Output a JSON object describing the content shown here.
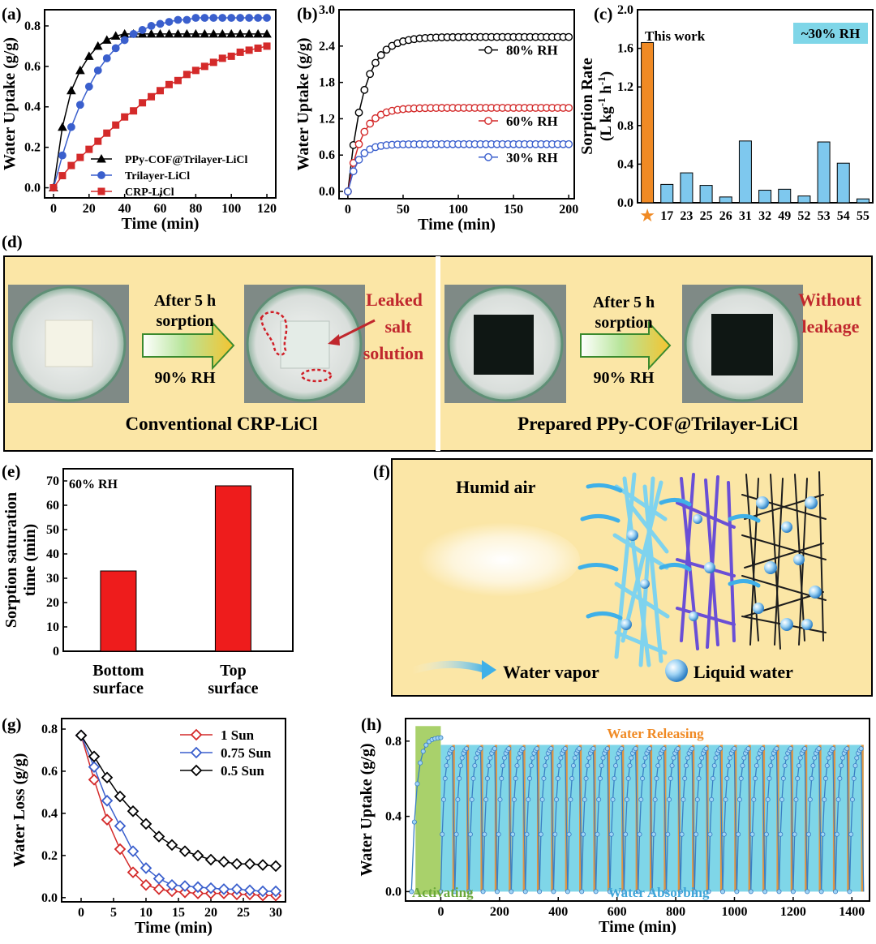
{
  "colors": {
    "black": "#000000",
    "blue": "#3a5fcd",
    "red": "#d42a2a",
    "orange": "#f08a24",
    "lightblue": "#8fd3f4",
    "barblue": "#7ec8ee",
    "panelbg": "#fbe6a6",
    "redbar": "#ee1c1c",
    "cyanbox": "#7fd6e8",
    "green": "#a9d16b",
    "darkred": "#c0272d"
  },
  "panels": {
    "a": "(a)",
    "b": "(b)",
    "c": "(c)",
    "d": "(d)",
    "e": "(e)",
    "f": "(f)",
    "g": "(g)",
    "h": "(h)"
  },
  "panel_d": {
    "left_arrow_top": "After 5 h",
    "left_arrow_mid": "sorption",
    "left_arrow_bot": "90% RH",
    "right_arrow_top": "After 5 h",
    "right_arrow_mid": "sorption",
    "right_arrow_bot": "90% RH",
    "leak_1": "Leaked",
    "leak_2": "salt",
    "leak_3": "solution",
    "noleak_1": "Without",
    "noleak_2": "leakage",
    "left_caption": "Conventional CRP-LiCl",
    "right_caption": "Prepared PPy-COF@Trilayer-LiCl"
  },
  "panel_f": {
    "humid_air": "Humid air",
    "water_vapor": "Water vapor",
    "liquid_water": "Liquid water"
  },
  "chart_data": [
    {
      "id": "a",
      "type": "line",
      "xlabel": "Time (min)",
      "ylabel": "Water Uptake (g/g)",
      "xlim": [
        -5,
        125
      ],
      "ylim": [
        -0.05,
        0.88
      ],
      "xticks": [
        0,
        20,
        40,
        60,
        80,
        100,
        120
      ],
      "xtick_labels": [
        "0",
        "20",
        "40",
        "60",
        "80",
        "100",
        "120"
      ],
      "yticks": [
        0.0,
        0.2,
        0.4,
        0.6,
        0.8
      ],
      "ytick_labels": [
        "0.0",
        "0.2",
        "0.4",
        "0.6",
        "0.8"
      ],
      "series": [
        {
          "name": "PPy-COF@Trilayer-LiCl",
          "marker": "triangle",
          "color": "#000000",
          "x": [
            0,
            5,
            10,
            15,
            20,
            25,
            30,
            35,
            40,
            45,
            50,
            55,
            60,
            65,
            70,
            75,
            80,
            85,
            90,
            95,
            100,
            105,
            110,
            115,
            120
          ],
          "y": [
            0,
            0.3,
            0.48,
            0.58,
            0.65,
            0.7,
            0.73,
            0.75,
            0.76,
            0.76,
            0.76,
            0.76,
            0.76,
            0.76,
            0.76,
            0.76,
            0.76,
            0.76,
            0.76,
            0.76,
            0.76,
            0.76,
            0.76,
            0.76,
            0.76
          ]
        },
        {
          "name": "Trilayer-LiCl",
          "marker": "circle",
          "color": "#3a5fcd",
          "x": [
            0,
            5,
            10,
            15,
            20,
            25,
            30,
            35,
            40,
            45,
            50,
            55,
            60,
            65,
            70,
            75,
            80,
            85,
            90,
            95,
            100,
            105,
            110,
            115,
            120
          ],
          "y": [
            0,
            0.16,
            0.3,
            0.41,
            0.5,
            0.58,
            0.64,
            0.69,
            0.73,
            0.76,
            0.78,
            0.8,
            0.81,
            0.82,
            0.83,
            0.83,
            0.84,
            0.84,
            0.84,
            0.84,
            0.84,
            0.84,
            0.84,
            0.84,
            0.84
          ]
        },
        {
          "name": "CRP-LiCl",
          "marker": "square",
          "color": "#d42a2a",
          "x": [
            0,
            5,
            10,
            15,
            20,
            25,
            30,
            35,
            40,
            45,
            50,
            55,
            60,
            65,
            70,
            75,
            80,
            85,
            90,
            95,
            100,
            105,
            110,
            115,
            120
          ],
          "y": [
            0,
            0.06,
            0.11,
            0.15,
            0.19,
            0.23,
            0.27,
            0.31,
            0.35,
            0.38,
            0.42,
            0.45,
            0.48,
            0.51,
            0.53,
            0.56,
            0.58,
            0.6,
            0.62,
            0.64,
            0.65,
            0.67,
            0.68,
            0.69,
            0.7
          ]
        }
      ]
    },
    {
      "id": "b",
      "type": "line",
      "xlabel": "Time (min)",
      "ylabel": "Water Uptake (g/g)",
      "xlim": [
        -8,
        205
      ],
      "ylim": [
        -0.12,
        3.0
      ],
      "xticks": [
        0,
        50,
        100,
        150,
        200
      ],
      "xtick_labels": [
        "0",
        "50",
        "100",
        "150",
        "200"
      ],
      "yticks": [
        0.0,
        0.6,
        1.2,
        1.8,
        2.4,
        3.0
      ],
      "ytick_labels": [
        "0.0",
        "0.6",
        "1.2",
        "1.8",
        "2.4",
        "3.0"
      ],
      "series": [
        {
          "name": "80% RH",
          "color": "#000000",
          "plateau": 2.55,
          "tau": 14
        },
        {
          "name": "60% RH",
          "color": "#d42a2a",
          "plateau": 1.38,
          "tau": 12
        },
        {
          "name": "30% RH",
          "color": "#3a5fcd",
          "plateau": 0.78,
          "tau": 9
        }
      ],
      "x_step": 5
    },
    {
      "id": "c",
      "type": "bar",
      "ylabel": "Sorption Rate",
      "ylabel2": "(L kg",
      "ylabel2_sup1": "-1",
      "ylabel2_mid": " h",
      "ylabel2_sup2": "-1",
      "ylabel2_end": ")",
      "title_annotation": "This work",
      "badge": "~30% RH",
      "ylim": [
        0,
        2.0
      ],
      "yticks": [
        0.0,
        0.4,
        0.8,
        1.2,
        1.6,
        2.0
      ],
      "ytick_labels": [
        "0.0",
        "0.4",
        "0.8",
        "1.2",
        "1.6",
        "2.0"
      ],
      "categories": [
        "★",
        "17",
        "23",
        "25",
        "26",
        "31",
        "32",
        "49",
        "52",
        "53",
        "54",
        "55"
      ],
      "values": [
        1.66,
        0.19,
        0.31,
        0.18,
        0.06,
        0.64,
        0.13,
        0.14,
        0.07,
        0.63,
        0.41,
        0.04
      ]
    },
    {
      "id": "e",
      "type": "bar",
      "ylabel": "Sorption saturation",
      "ylabel2": "time (min)",
      "annotation": "60% RH",
      "ylim": [
        0,
        75
      ],
      "yticks": [
        0,
        10,
        20,
        30,
        40,
        50,
        60,
        70
      ],
      "ytick_labels": [
        "0",
        "10",
        "20",
        "30",
        "40",
        "50",
        "60",
        "70"
      ],
      "categories": [
        "Bottom surface",
        "Top surface"
      ],
      "category_lines": [
        [
          "Bottom",
          "surface"
        ],
        [
          "Top",
          "surface"
        ]
      ],
      "values": [
        33,
        68
      ]
    },
    {
      "id": "g",
      "type": "line",
      "xlabel": "Time (min)",
      "ylabel": "Water Loss (g/g)",
      "xlim": [
        -3,
        31.5
      ],
      "ylim": [
        -0.02,
        0.85
      ],
      "xticks": [
        0,
        5,
        10,
        15,
        20,
        25,
        30
      ],
      "xtick_labels": [
        "0",
        "5",
        "10",
        "15",
        "20",
        "25",
        "30"
      ],
      "yticks": [
        0.0,
        0.2,
        0.4,
        0.6,
        0.8
      ],
      "ytick_labels": [
        "0.0",
        "0.2",
        "0.4",
        "0.6",
        "0.8"
      ],
      "series": [
        {
          "name": "1 Sun",
          "color": "#d42a2a",
          "x": [
            0,
            2,
            4,
            6,
            8,
            10,
            12,
            14,
            16,
            18,
            20,
            22,
            24,
            26,
            28,
            30
          ],
          "y": [
            0.77,
            0.56,
            0.37,
            0.23,
            0.12,
            0.06,
            0.04,
            0.03,
            0.025,
            0.02,
            0.02,
            0.02,
            0.015,
            0.015,
            0.01,
            0.01
          ]
        },
        {
          "name": "0.75 Sun",
          "color": "#3a5fcd",
          "x": [
            0,
            2,
            4,
            6,
            8,
            10,
            12,
            14,
            16,
            18,
            20,
            22,
            24,
            26,
            28,
            30
          ],
          "y": [
            0.77,
            0.62,
            0.46,
            0.34,
            0.22,
            0.14,
            0.09,
            0.06,
            0.055,
            0.05,
            0.045,
            0.04,
            0.04,
            0.035,
            0.03,
            0.03
          ]
        },
        {
          "name": "0.5 Sun",
          "color": "#000000",
          "x": [
            0,
            2,
            4,
            6,
            8,
            10,
            12,
            14,
            16,
            18,
            20,
            22,
            24,
            26,
            28,
            30
          ],
          "y": [
            0.77,
            0.67,
            0.57,
            0.48,
            0.41,
            0.35,
            0.29,
            0.25,
            0.22,
            0.2,
            0.18,
            0.17,
            0.16,
            0.16,
            0.155,
            0.15
          ]
        }
      ]
    },
    {
      "id": "h",
      "type": "line",
      "xlabel": "Time (min)",
      "ylabel": "Water Uptake (g/g)",
      "xlim": [
        -120,
        1460
      ],
      "ylim": [
        -0.05,
        0.92
      ],
      "xticks": [
        0,
        200,
        400,
        600,
        800,
        1000,
        1200,
        1400
      ],
      "xtick_labels": [
        "0",
        "200",
        "400",
        "600",
        "800",
        "1000",
        "1200",
        "1400"
      ],
      "yticks": [
        0.0,
        0.4,
        0.8
      ],
      "ytick_labels": [
        "0.0",
        "0.4",
        "0.8"
      ],
      "activating_label": "Activating",
      "absorbing_label": "Water Absorbing",
      "releasing_label": "Water Releasing",
      "activating_range": [
        -100,
        0
      ],
      "cycles": 30,
      "cycle_start": 0,
      "cycle_end": 1440,
      "peak": 0.76,
      "activating_peak": 0.82
    }
  ]
}
